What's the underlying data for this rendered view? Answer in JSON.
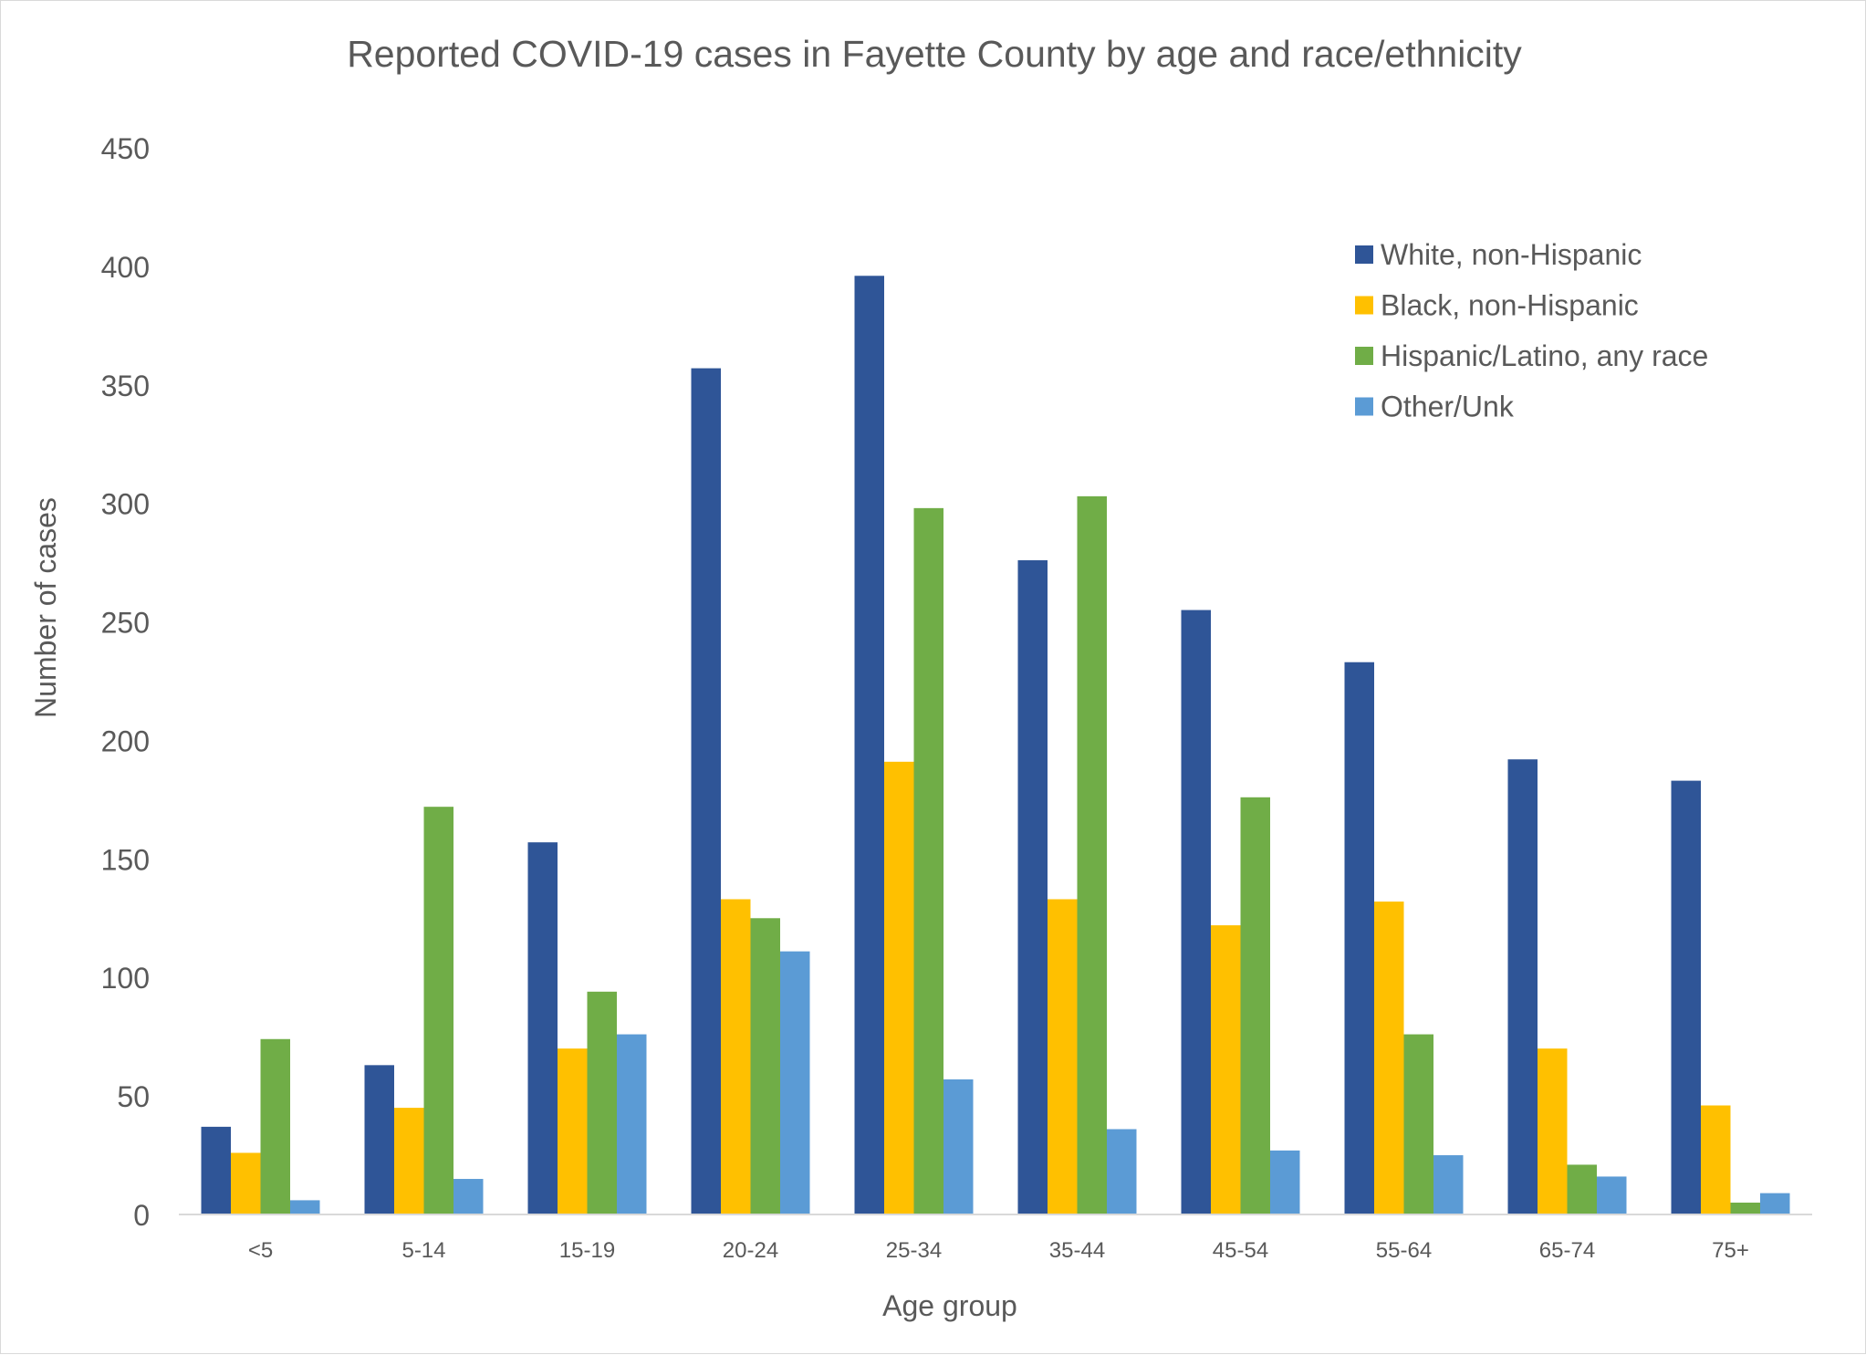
{
  "chart_data": {
    "type": "bar",
    "title": "Reported COVID-19 cases in Fayette County by age and race/ethnicity",
    "xlabel": "Age group",
    "ylabel": "Number of cases",
    "ylim": [
      0,
      450
    ],
    "yticks": [
      0,
      50,
      100,
      150,
      200,
      250,
      300,
      350,
      400,
      450
    ],
    "grid": false,
    "legend_position": "top-right",
    "categories": [
      "<5",
      "5-14",
      "15-19",
      "20-24",
      "25-34",
      "35-44",
      "45-54",
      "55-64",
      "65-74",
      "75+"
    ],
    "series": [
      {
        "name": "White, non-Hispanic",
        "color": "#2f5597",
        "values": [
          37,
          63,
          157,
          357,
          396,
          276,
          255,
          233,
          192,
          183
        ]
      },
      {
        "name": "Black, non-Hispanic",
        "color": "#ffc000",
        "values": [
          26,
          45,
          70,
          133,
          191,
          133,
          122,
          132,
          70,
          46
        ]
      },
      {
        "name": "Hispanic/Latino, any race",
        "color": "#70ad47",
        "values": [
          74,
          172,
          94,
          125,
          298,
          303,
          176,
          76,
          21,
          5
        ]
      },
      {
        "name": "Other/Unk",
        "color": "#5b9bd5",
        "values": [
          6,
          15,
          76,
          111,
          57,
          36,
          27,
          25,
          16,
          9
        ]
      }
    ]
  }
}
